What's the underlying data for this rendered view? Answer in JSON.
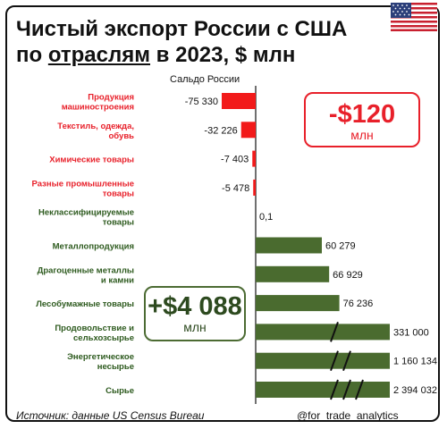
{
  "title": {
    "line1": "Чистый экспорт России с США",
    "line2_prefix": "по ",
    "line2_underlined": "отраслям",
    "line2_suffix": " в 2023, $ млн"
  },
  "subtitle": "Сальдо России",
  "callouts": {
    "negative": {
      "value": "-$120",
      "unit": "млн"
    },
    "positive": {
      "value": "+$4 088",
      "unit": "млн"
    }
  },
  "footer": {
    "source": "Источник: данные US Census Bureau",
    "handle": "@for_trade_analytics"
  },
  "colors": {
    "negative": "#f21a1a",
    "positive": "#4a6b2f",
    "negative_label": "#e8202a",
    "positive_label": "#2d5a1e"
  },
  "chart_data": {
    "type": "bar",
    "orientation": "horizontal",
    "xlabel": "Сальдо России",
    "unit": "$ млн",
    "categories": [
      [
        "Продукция",
        "машиностроения"
      ],
      [
        "Текстиль, одежда,",
        "обувь"
      ],
      [
        "Химические товары"
      ],
      [
        "Разные промышленные",
        "товары"
      ],
      [
        "Неклассифицируемые",
        "товары"
      ],
      [
        "Металлопродукция"
      ],
      [
        "Драгоценные металлы",
        "и камни"
      ],
      [
        "Лесобумажные товары"
      ],
      [
        "Продовольствие и",
        "сельхозсырье"
      ],
      [
        "Энергетическое",
        "несырье"
      ],
      [
        "Сырье"
      ]
    ],
    "values": [
      -75330,
      -32226,
      -7403,
      -5478,
      0.1,
      60279,
      66929,
      76236,
      331000,
      1160134,
      2394032
    ],
    "labels": [
      "-75 330",
      "-32 226",
      "-7 403",
      "-5 478",
      "0,1",
      "60 279",
      "66 929",
      "76 236",
      "331 000",
      "1 160 134",
      "2 394 032"
    ],
    "broken_axis_marks": [
      0,
      0,
      0,
      0,
      0,
      0,
      0,
      0,
      1,
      2,
      3
    ],
    "grid": false,
    "legend": "none"
  }
}
